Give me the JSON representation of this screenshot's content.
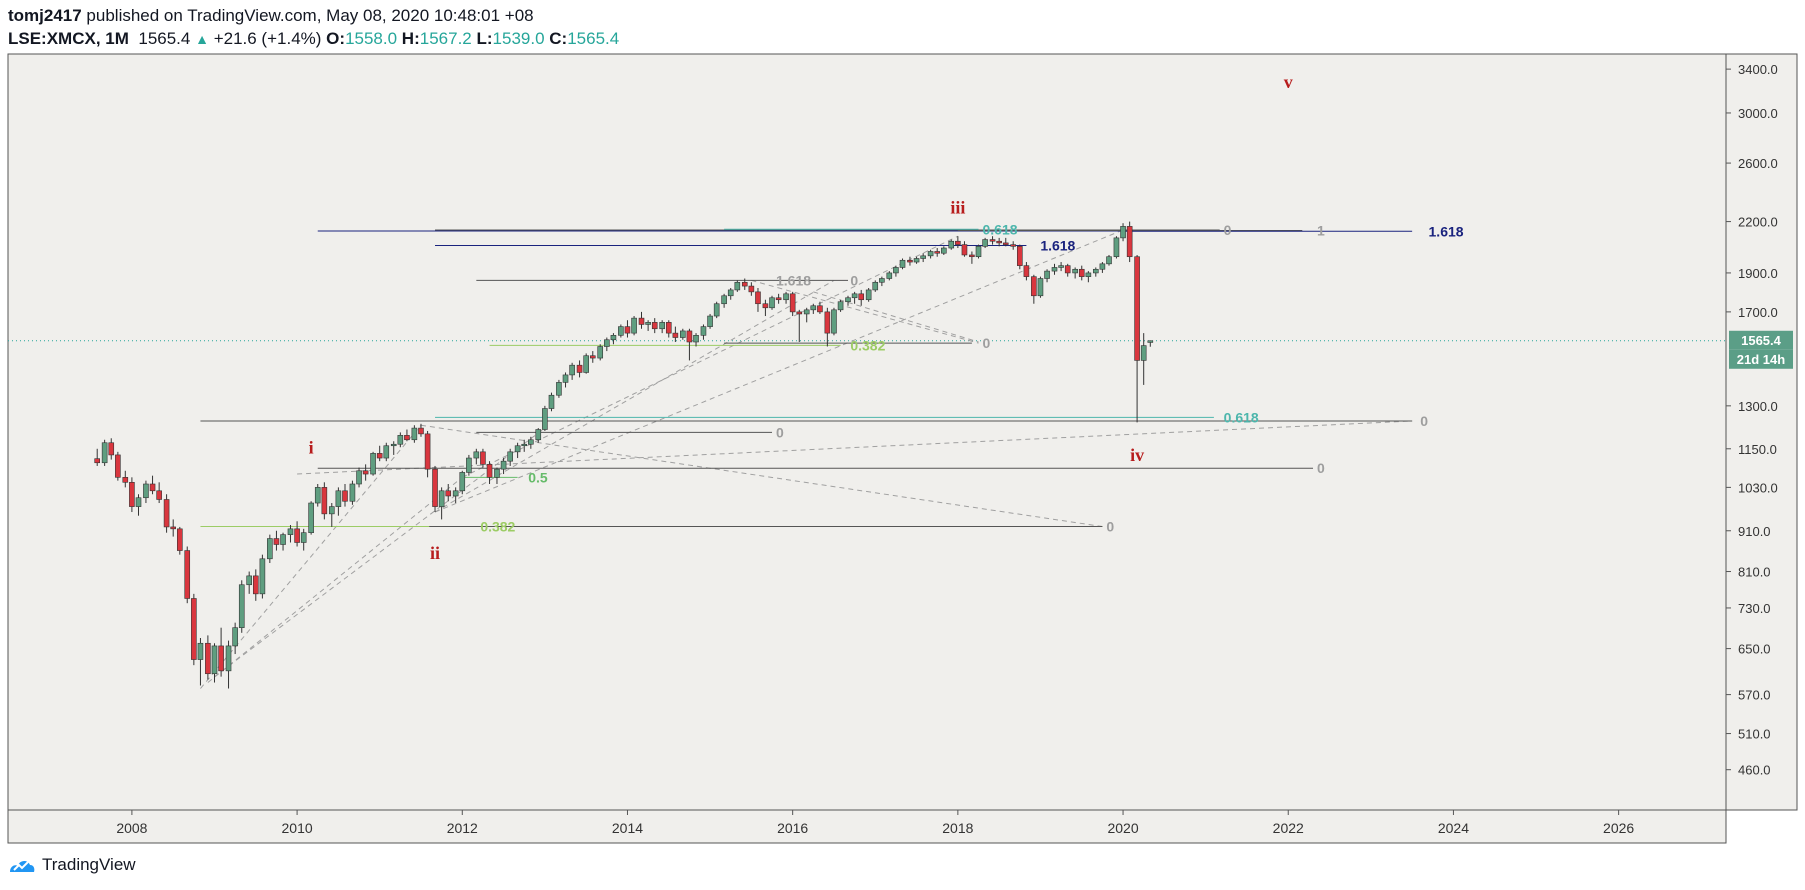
{
  "header": {
    "user": "tomj2417",
    "published_text": " published on TradingView.com, May 08, 2020 10:48:01 +08",
    "symbol": "LSE:XMCX, 1M",
    "last": "1565.4",
    "change_icon": "triangle-up-icon",
    "change": "+21.6 (+1.4%)",
    "open_label": "O:",
    "open": "1558.0",
    "high_label": "H:",
    "high": "1567.2",
    "low_label": "L:",
    "low": "1539.0",
    "close_label": "C:",
    "close": "1565.4"
  },
  "footer": {
    "brand": "TradingView",
    "icon": "tradingview-logo-icon"
  },
  "colors": {
    "up": "#26a69a",
    "down": "#ef5350",
    "background": "#f0efec",
    "wave_label": "#b71c1c",
    "fib_blue": "#1a237e",
    "fib_violet": "#7e57c2",
    "fib_teal": "#4db6ac",
    "fib_yellow": "#9ccc65",
    "fib_green": "#66bb6a",
    "price_line": "#26a69a"
  },
  "chart_data": {
    "type": "candlestick",
    "x_axis": {
      "ticks": [
        "2008",
        "2010",
        "2012",
        "2014",
        "2016",
        "2018",
        "2020",
        "2022",
        "2024",
        "2026"
      ],
      "range": [
        2006.5,
        2027.3
      ]
    },
    "y_axis": {
      "scale": "log",
      "ticks": [
        "3400.0",
        "3000.0",
        "2600.0",
        "2200.0",
        "1900.0",
        "1700.0",
        "1300.0",
        "1150.0",
        "1030.0",
        "910.0",
        "810.0",
        "730.0",
        "650.0",
        "570.0",
        "510.0",
        "460.0"
      ],
      "range": [
        410,
        3550
      ]
    },
    "price_label": "1565.4",
    "countdown_label": "21d 14h",
    "last_price": 1565.4,
    "candles": [
      [
        2007.58,
        1118,
        1150,
        1095,
        1105
      ],
      [
        2007.67,
        1105,
        1180,
        1095,
        1170
      ],
      [
        2007.75,
        1170,
        1185,
        1115,
        1130
      ],
      [
        2007.83,
        1130,
        1140,
        1050,
        1060
      ],
      [
        2007.92,
        1060,
        1080,
        1030,
        1045
      ],
      [
        2008.0,
        1045,
        1060,
        960,
        975
      ],
      [
        2008.08,
        975,
        1010,
        950,
        1000
      ],
      [
        2008.17,
        1000,
        1050,
        985,
        1040
      ],
      [
        2008.25,
        1040,
        1065,
        1010,
        1020
      ],
      [
        2008.33,
        1020,
        1045,
        985,
        995
      ],
      [
        2008.42,
        995,
        1010,
        905,
        920
      ],
      [
        2008.5,
        920,
        940,
        895,
        915
      ],
      [
        2008.58,
        915,
        920,
        850,
        860
      ],
      [
        2008.67,
        860,
        870,
        740,
        750
      ],
      [
        2008.75,
        750,
        760,
        620,
        630
      ],
      [
        2008.83,
        630,
        670,
        585,
        660
      ],
      [
        2008.92,
        660,
        675,
        595,
        605
      ],
      [
        2009.0,
        605,
        660,
        590,
        655
      ],
      [
        2009.08,
        655,
        690,
        600,
        610
      ],
      [
        2009.17,
        610,
        665,
        580,
        655
      ],
      [
        2009.25,
        655,
        700,
        640,
        690
      ],
      [
        2009.33,
        690,
        790,
        680,
        780
      ],
      [
        2009.42,
        780,
        810,
        760,
        800
      ],
      [
        2009.5,
        800,
        815,
        745,
        760
      ],
      [
        2009.58,
        760,
        850,
        750,
        840
      ],
      [
        2009.67,
        840,
        900,
        830,
        890
      ],
      [
        2009.75,
        890,
        910,
        860,
        875
      ],
      [
        2009.83,
        875,
        905,
        860,
        900
      ],
      [
        2009.92,
        900,
        925,
        880,
        915
      ],
      [
        2010.0,
        915,
        935,
        870,
        880
      ],
      [
        2010.08,
        880,
        915,
        860,
        905
      ],
      [
        2010.17,
        905,
        990,
        900,
        985
      ],
      [
        2010.25,
        985,
        1040,
        975,
        1030
      ],
      [
        2010.33,
        1030,
        1045,
        940,
        955
      ],
      [
        2010.42,
        955,
        985,
        920,
        975
      ],
      [
        2010.5,
        975,
        1030,
        950,
        1020
      ],
      [
        2010.58,
        1020,
        1040,
        975,
        990
      ],
      [
        2010.67,
        990,
        1050,
        980,
        1040
      ],
      [
        2010.75,
        1040,
        1090,
        1030,
        1080
      ],
      [
        2010.83,
        1080,
        1100,
        1050,
        1070
      ],
      [
        2010.92,
        1070,
        1140,
        1065,
        1135
      ],
      [
        2011.0,
        1135,
        1160,
        1110,
        1120
      ],
      [
        2011.08,
        1120,
        1170,
        1110,
        1160
      ],
      [
        2011.17,
        1160,
        1175,
        1130,
        1165
      ],
      [
        2011.25,
        1165,
        1205,
        1155,
        1195
      ],
      [
        2011.33,
        1195,
        1215,
        1175,
        1180
      ],
      [
        2011.42,
        1180,
        1230,
        1170,
        1220
      ],
      [
        2011.5,
        1220,
        1235,
        1190,
        1200
      ],
      [
        2011.58,
        1200,
        1210,
        1060,
        1085
      ],
      [
        2011.67,
        1085,
        1095,
        960,
        975
      ],
      [
        2011.75,
        975,
        1030,
        940,
        1020
      ],
      [
        2011.83,
        1020,
        1040,
        990,
        1005
      ],
      [
        2011.92,
        1005,
        1030,
        985,
        1020
      ],
      [
        2012.0,
        1020,
        1080,
        1010,
        1075
      ],
      [
        2012.08,
        1075,
        1130,
        1065,
        1120
      ],
      [
        2012.17,
        1120,
        1150,
        1100,
        1140
      ],
      [
        2012.25,
        1140,
        1150,
        1090,
        1100
      ],
      [
        2012.33,
        1100,
        1110,
        1040,
        1060
      ],
      [
        2012.42,
        1060,
        1090,
        1040,
        1085
      ],
      [
        2012.5,
        1085,
        1120,
        1070,
        1110
      ],
      [
        2012.58,
        1110,
        1150,
        1095,
        1140
      ],
      [
        2012.67,
        1140,
        1170,
        1120,
        1160
      ],
      [
        2012.75,
        1160,
        1180,
        1140,
        1165
      ],
      [
        2012.83,
        1165,
        1190,
        1150,
        1180
      ],
      [
        2012.92,
        1180,
        1220,
        1170,
        1215
      ],
      [
        2013.0,
        1215,
        1300,
        1210,
        1290
      ],
      [
        2013.08,
        1290,
        1350,
        1280,
        1340
      ],
      [
        2013.17,
        1340,
        1400,
        1330,
        1390
      ],
      [
        2013.25,
        1390,
        1430,
        1370,
        1420
      ],
      [
        2013.33,
        1420,
        1470,
        1400,
        1460
      ],
      [
        2013.42,
        1460,
        1480,
        1410,
        1430
      ],
      [
        2013.5,
        1430,
        1510,
        1425,
        1500
      ],
      [
        2013.58,
        1500,
        1520,
        1470,
        1490
      ],
      [
        2013.67,
        1490,
        1550,
        1480,
        1540
      ],
      [
        2013.75,
        1540,
        1580,
        1520,
        1570
      ],
      [
        2013.83,
        1570,
        1600,
        1550,
        1590
      ],
      [
        2013.92,
        1590,
        1640,
        1580,
        1630
      ],
      [
        2014.0,
        1630,
        1660,
        1580,
        1600
      ],
      [
        2014.08,
        1600,
        1680,
        1590,
        1670
      ],
      [
        2014.17,
        1670,
        1700,
        1620,
        1640
      ],
      [
        2014.25,
        1640,
        1660,
        1610,
        1650
      ],
      [
        2014.33,
        1650,
        1670,
        1600,
        1620
      ],
      [
        2014.42,
        1620,
        1660,
        1600,
        1650
      ],
      [
        2014.5,
        1650,
        1660,
        1580,
        1600
      ],
      [
        2014.58,
        1600,
        1630,
        1560,
        1580
      ],
      [
        2014.67,
        1580,
        1620,
        1570,
        1610
      ],
      [
        2014.75,
        1610,
        1620,
        1480,
        1560
      ],
      [
        2014.83,
        1560,
        1600,
        1540,
        1590
      ],
      [
        2014.92,
        1590,
        1640,
        1570,
        1630
      ],
      [
        2015.0,
        1630,
        1690,
        1620,
        1680
      ],
      [
        2015.08,
        1680,
        1750,
        1670,
        1740
      ],
      [
        2015.17,
        1740,
        1790,
        1720,
        1780
      ],
      [
        2015.25,
        1780,
        1820,
        1760,
        1810
      ],
      [
        2015.33,
        1810,
        1860,
        1800,
        1850
      ],
      [
        2015.42,
        1850,
        1870,
        1810,
        1830
      ],
      [
        2015.5,
        1830,
        1850,
        1780,
        1800
      ],
      [
        2015.58,
        1800,
        1820,
        1700,
        1740
      ],
      [
        2015.67,
        1740,
        1760,
        1680,
        1720
      ],
      [
        2015.75,
        1720,
        1780,
        1710,
        1770
      ],
      [
        2015.83,
        1770,
        1790,
        1740,
        1760
      ],
      [
        2015.92,
        1760,
        1800,
        1740,
        1790
      ],
      [
        2016.0,
        1790,
        1800,
        1680,
        1700
      ],
      [
        2016.08,
        1700,
        1710,
        1560,
        1690
      ],
      [
        2016.17,
        1690,
        1720,
        1650,
        1710
      ],
      [
        2016.25,
        1710,
        1740,
        1690,
        1730
      ],
      [
        2016.33,
        1730,
        1750,
        1690,
        1700
      ],
      [
        2016.42,
        1700,
        1720,
        1540,
        1600
      ],
      [
        2016.5,
        1600,
        1720,
        1590,
        1710
      ],
      [
        2016.58,
        1710,
        1760,
        1700,
        1750
      ],
      [
        2016.67,
        1750,
        1780,
        1730,
        1770
      ],
      [
        2016.75,
        1770,
        1800,
        1740,
        1790
      ],
      [
        2016.83,
        1790,
        1810,
        1730,
        1760
      ],
      [
        2016.92,
        1760,
        1820,
        1750,
        1810
      ],
      [
        2017.0,
        1810,
        1860,
        1800,
        1850
      ],
      [
        2017.08,
        1850,
        1880,
        1830,
        1870
      ],
      [
        2017.17,
        1870,
        1910,
        1860,
        1900
      ],
      [
        2017.25,
        1900,
        1940,
        1880,
        1930
      ],
      [
        2017.33,
        1930,
        1980,
        1920,
        1970
      ],
      [
        2017.42,
        1970,
        1990,
        1940,
        1960
      ],
      [
        2017.5,
        1960,
        1990,
        1950,
        1980
      ],
      [
        2017.58,
        1980,
        2010,
        1960,
        1995
      ],
      [
        2017.67,
        1995,
        2030,
        1980,
        2020
      ],
      [
        2017.75,
        2020,
        2040,
        1990,
        2010
      ],
      [
        2017.83,
        2010,
        2050,
        2000,
        2040
      ],
      [
        2017.92,
        2040,
        2090,
        2030,
        2080
      ],
      [
        2018.0,
        2080,
        2110,
        2040,
        2060
      ],
      [
        2018.08,
        2060,
        2080,
        1990,
        2000
      ],
      [
        2018.17,
        2000,
        2020,
        1950,
        1990
      ],
      [
        2018.25,
        1990,
        2060,
        1980,
        2050
      ],
      [
        2018.33,
        2050,
        2100,
        2040,
        2090
      ],
      [
        2018.42,
        2090,
        2110,
        2060,
        2080
      ],
      [
        2018.5,
        2080,
        2100,
        2050,
        2070
      ],
      [
        2018.58,
        2070,
        2100,
        2050,
        2060
      ],
      [
        2018.67,
        2060,
        2080,
        2030,
        2050
      ],
      [
        2018.75,
        2050,
        2060,
        1920,
        1940
      ],
      [
        2018.83,
        1940,
        1960,
        1860,
        1880
      ],
      [
        2018.92,
        1880,
        1890,
        1740,
        1780
      ],
      [
        2019.0,
        1780,
        1880,
        1770,
        1870
      ],
      [
        2019.08,
        1870,
        1920,
        1850,
        1910
      ],
      [
        2019.17,
        1910,
        1950,
        1890,
        1930
      ],
      [
        2019.25,
        1930,
        1960,
        1910,
        1940
      ],
      [
        2019.33,
        1940,
        1950,
        1880,
        1900
      ],
      [
        2019.42,
        1900,
        1930,
        1870,
        1920
      ],
      [
        2019.5,
        1920,
        1940,
        1860,
        1880
      ],
      [
        2019.58,
        1880,
        1910,
        1850,
        1900
      ],
      [
        2019.67,
        1900,
        1930,
        1880,
        1920
      ],
      [
        2019.75,
        1920,
        1960,
        1900,
        1950
      ],
      [
        2019.83,
        1950,
        2000,
        1940,
        1990
      ],
      [
        2019.92,
        1990,
        2110,
        1980,
        2100
      ],
      [
        2020.0,
        2100,
        2190,
        2080,
        2170
      ],
      [
        2020.08,
        2170,
        2200,
        1960,
        1990
      ],
      [
        2020.17,
        1990,
        2000,
        1240,
        1480
      ],
      [
        2020.25,
        1480,
        1600,
        1380,
        1544
      ],
      [
        2020.33,
        1558,
        1567.2,
        1539,
        1565.4
      ]
    ],
    "horizontal_levels": [
      {
        "price": 2142,
        "x1": 2010.25,
        "x2": 2020.96,
        "color": "#1a237e",
        "label": "",
        "label_x": 2021.0
      },
      {
        "price": 2148,
        "x1": 2011.67,
        "x2": 2021.17,
        "color": "#555555",
        "label": "0",
        "label_x": 2021.17
      },
      {
        "price": 2145,
        "x1": 2018.0,
        "x2": 2022.17,
        "color": "#555555",
        "label": "1",
        "label_x": 2022.3
      },
      {
        "price": 2140,
        "x1": 2020.0,
        "x2": 2023.5,
        "color": "#1a237e",
        "label": "1.618",
        "label_x": 2023.65
      },
      {
        "price": 2152,
        "x1": 2015.17,
        "x2": 2018.25,
        "color": "#4db6ac",
        "label": "0.618",
        "label_x": 2018.25
      },
      {
        "price": 2055,
        "x1": 2011.67,
        "x2": 2018.83,
        "color": "#1a237e",
        "label": "1.618",
        "label_x": 2018.95
      },
      {
        "price": 1860,
        "x1": 2012.17,
        "x2": 2016.5,
        "color": "#555555",
        "label": "1.618",
        "label_x": 2015.75
      },
      {
        "price": 1860,
        "x1": 2016.5,
        "x2": 2016.67,
        "color": "#555555",
        "label": "0",
        "label_x": 2016.65
      },
      {
        "price": 1555,
        "x1": 2015.17,
        "x2": 2018.17,
        "color": "#555555",
        "label": "0",
        "label_x": 2018.25
      },
      {
        "price": 1545,
        "x1": 2012.33,
        "x2": 2016.58,
        "color": "#9ccc65",
        "label": "0.382",
        "label_x": 2016.65
      },
      {
        "price": 1258,
        "x1": 2011.67,
        "x2": 2021.1,
        "color": "#4db6ac",
        "label": "0.618",
        "label_x": 2021.17
      },
      {
        "price": 1245,
        "x1": 2008.83,
        "x2": 2023.5,
        "color": "#555555",
        "label": "0",
        "label_x": 2023.55
      },
      {
        "price": 1205,
        "x1": 2012.17,
        "x2": 2015.75,
        "color": "#555555",
        "label": "0",
        "label_x": 2015.75
      },
      {
        "price": 1088,
        "x1": 2010.25,
        "x2": 2022.3,
        "color": "#555555",
        "label": "0",
        "label_x": 2022.3
      },
      {
        "price": 1060,
        "x1": 2012.0,
        "x2": 2012.67,
        "color": "#66bb6a",
        "label": "0.5",
        "label_x": 2012.75
      },
      {
        "price": 921,
        "x1": 2008.83,
        "x2": 2019.75,
        "color": "#9ccc65",
        "label": "0.382",
        "label_x": 2012.17
      },
      {
        "price": 921,
        "x1": 2011.6,
        "x2": 2019.75,
        "color": "#555555",
        "label": "0",
        "label_x": 2019.75
      }
    ],
    "trend_lines": [
      [
        2008.83,
        580,
        2011.5,
        1230
      ],
      [
        2008.92,
        590,
        2012.0,
        1060
      ],
      [
        2009.0,
        600,
        2013.0,
        1220
      ],
      [
        2011.67,
        960,
        2016.5,
        1860
      ],
      [
        2011.67,
        960,
        2020.0,
        2148
      ],
      [
        2012.0,
        1060,
        2018.0,
        2110
      ],
      [
        2010.0,
        1070,
        2023.5,
        1245
      ],
      [
        2011.5,
        1230,
        2019.75,
        921
      ],
      [
        2015.5,
        1860,
        2018.25,
        1555
      ],
      [
        2016.25,
        1800,
        2018.25,
        1560
      ]
    ],
    "wave_labels": [
      {
        "text": "i",
        "x": 2010.17,
        "price": 1135
      },
      {
        "text": "ii",
        "x": 2011.67,
        "price": 840
      },
      {
        "text": "iii",
        "x": 2018.0,
        "price": 2250
      },
      {
        "text": "iv",
        "x": 2020.17,
        "price": 1110
      },
      {
        "text": "v",
        "x": 2022.0,
        "price": 3220
      }
    ]
  }
}
